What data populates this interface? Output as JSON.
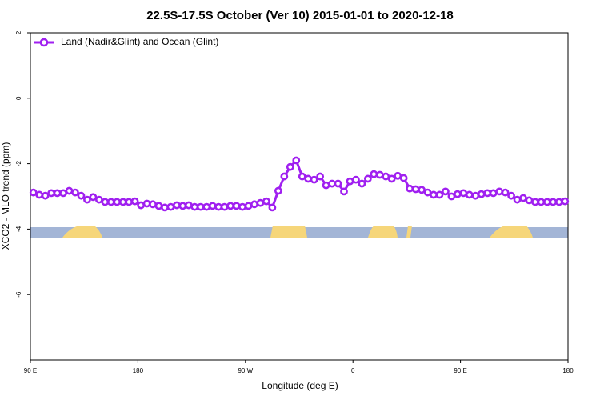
{
  "chart_data": {
    "type": "line",
    "title": "22.5S-17.5S October (Ver 10)   2015-01-01 to 2020-12-18",
    "xlabel": "Longitude (deg E)",
    "ylabel": "XCO2 - MLO trend (ppm)",
    "xlim": [
      90,
      540
    ],
    "ylim": [
      -8,
      2
    ],
    "xticks": [
      {
        "value": 90,
        "label": "90 E"
      },
      180,
      {
        "value": 270,
        "label": "90 W"
      },
      {
        "value": 360,
        "label": "0"
      },
      {
        "value": 450,
        "label": "90 E"
      },
      {
        "value": 540,
        "label": "180"
      }
    ],
    "yticks": [
      -6,
      -4,
      -2,
      0,
      2
    ],
    "legend": "top-left",
    "x": [
      92.5,
      97.5,
      102.5,
      107.5,
      112.5,
      117.5,
      122.5,
      127.5,
      132.5,
      137.5,
      142.5,
      147.5,
      152.5,
      157.5,
      162.5,
      167.5,
      172.5,
      177.5,
      182.5,
      187.5,
      192.5,
      197.5,
      202.5,
      207.5,
      212.5,
      217.5,
      222.5,
      227.5,
      232.5,
      237.5,
      242.5,
      247.5,
      252.5,
      257.5,
      262.5,
      267.5,
      272.5,
      277.5,
      282.5,
      287.5,
      292.5,
      297.5,
      302.5,
      307.5,
      312.5,
      317.5,
      322.5,
      327.5,
      332.5,
      337.5,
      342.5,
      347.5,
      352.5,
      357.5,
      362.5,
      367.5,
      372.5,
      377.5,
      382.5,
      387.5,
      392.5,
      397.5,
      402.5,
      407.5,
      412.5,
      417.5,
      422.5,
      427.5,
      432.5,
      437.5,
      442.5,
      447.5,
      452.5,
      457.5,
      462.5,
      467.5,
      472.5,
      477.5,
      482.5,
      487.5,
      492.5,
      497.5,
      502.5,
      507.5,
      512.5,
      517.5,
      522.5,
      527.5,
      532.5,
      537.5
    ],
    "series": [
      {
        "name": "Land (Nadir&Glint) and Ocean (Glint)",
        "color": "#a020f0",
        "values": [
          -2.88,
          -2.95,
          -2.98,
          -2.9,
          -2.9,
          -2.9,
          -2.83,
          -2.88,
          -2.98,
          -3.1,
          -3.02,
          -3.1,
          -3.17,
          -3.17,
          -3.17,
          -3.17,
          -3.17,
          -3.15,
          -3.27,
          -3.22,
          -3.24,
          -3.29,
          -3.34,
          -3.32,
          -3.27,
          -3.29,
          -3.27,
          -3.32,
          -3.32,
          -3.32,
          -3.29,
          -3.32,
          -3.32,
          -3.29,
          -3.29,
          -3.32,
          -3.29,
          -3.24,
          -3.2,
          -3.15,
          -3.34,
          -2.83,
          -2.39,
          -2.1,
          -1.9,
          -2.39,
          -2.46,
          -2.49,
          -2.39,
          -2.66,
          -2.61,
          -2.61,
          -2.85,
          -2.54,
          -2.49,
          -2.61,
          -2.46,
          -2.32,
          -2.34,
          -2.39,
          -2.46,
          -2.37,
          -2.44,
          -2.76,
          -2.78,
          -2.8,
          -2.88,
          -2.95,
          -2.95,
          -2.85,
          -3.0,
          -2.93,
          -2.9,
          -2.95,
          -2.98,
          -2.93,
          -2.9,
          -2.9,
          -2.85,
          -2.88,
          -2.98,
          -3.1,
          -3.05,
          -3.12,
          -3.17,
          -3.17,
          -3.17,
          -3.17,
          -3.17,
          -3.15
        ]
      }
    ]
  }
}
